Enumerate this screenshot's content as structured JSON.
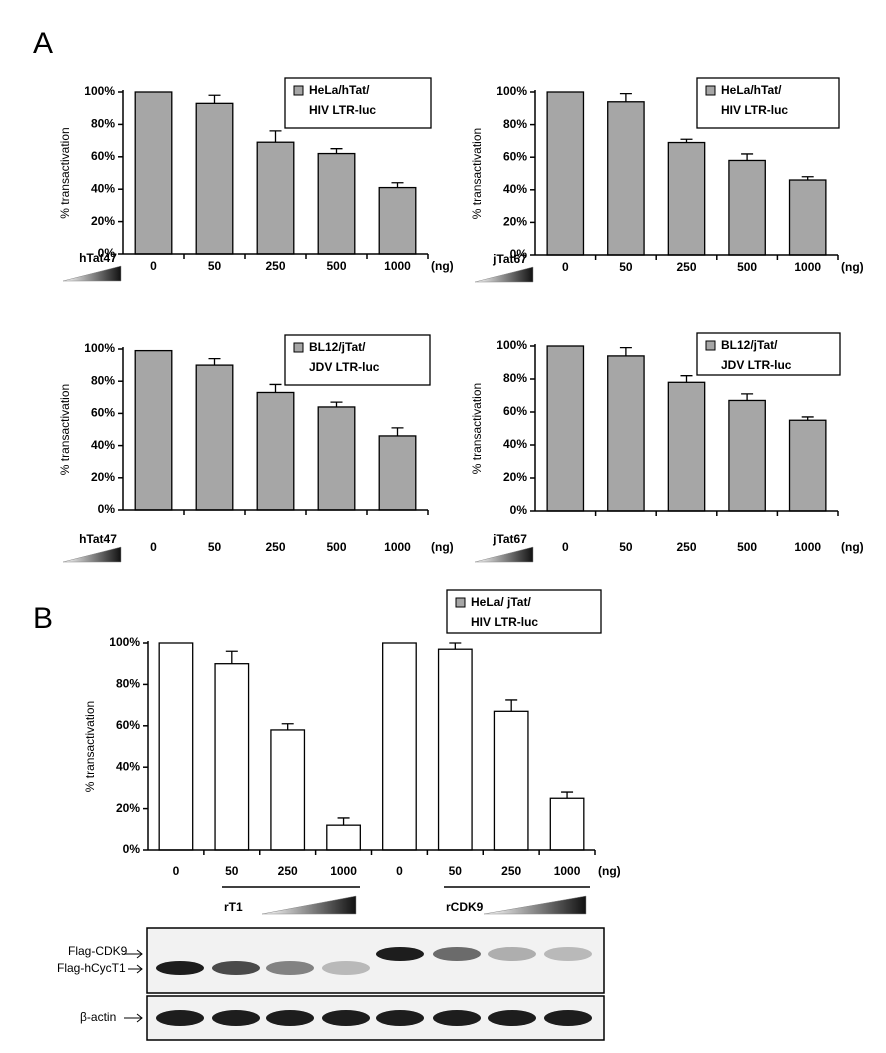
{
  "panel_labels": [
    "A",
    "B"
  ],
  "chart_data": [
    {
      "type": "bar",
      "ylabel": "% transactivation",
      "treatment": "hTat47",
      "x_unit": "(ng)",
      "categories": [
        "0",
        "50",
        "250",
        "500",
        "1000"
      ],
      "series": [
        {
          "name": "HeLa/hTat/\nHIV LTR-luc",
          "color": "#a6a6a6",
          "values": [
            100,
            93,
            69,
            62,
            41
          ],
          "errors": [
            null,
            5,
            7,
            3,
            3
          ]
        }
      ],
      "ylim": [
        0,
        100
      ],
      "yticks": [
        {
          "value": 0,
          "label": "0%"
        },
        {
          "value": 20,
          "label": "20%"
        },
        {
          "value": 40,
          "label": "40%"
        },
        {
          "value": 60,
          "label": "60%"
        },
        {
          "value": 80,
          "label": "80%"
        },
        {
          "value": 100,
          "label": "100%"
        }
      ]
    },
    {
      "type": "bar",
      "ylabel": "% transactivation",
      "treatment": "jTat67",
      "x_unit": "(ng)",
      "categories": [
        "0",
        "50",
        "250",
        "500",
        "1000"
      ],
      "series": [
        {
          "name": "HeLa/hTat/\nHIV LTR-luc",
          "color": "#a6a6a6",
          "values": [
            100,
            94,
            69,
            58,
            46
          ],
          "errors": [
            null,
            5,
            2,
            4,
            2
          ]
        }
      ],
      "ylim": [
        0,
        100
      ],
      "yticks": [
        {
          "value": 0,
          "label": "0%"
        },
        {
          "value": 20,
          "label": "20%"
        },
        {
          "value": 40,
          "label": "40%"
        },
        {
          "value": 60,
          "label": "60%"
        },
        {
          "value": 80,
          "label": "80%"
        },
        {
          "value": 100,
          "label": "100%"
        }
      ]
    },
    {
      "type": "bar",
      "ylabel": "% transactivation",
      "treatment": "hTat47",
      "x_unit": "(ng)",
      "categories": [
        "0",
        "50",
        "250",
        "500",
        "1000"
      ],
      "series": [
        {
          "name": "BL12/jTat/\nJDV LTR-luc",
          "color": "#a6a6a6",
          "values": [
            99,
            90,
            73,
            64,
            46
          ],
          "errors": [
            null,
            4,
            5,
            3,
            5
          ]
        }
      ],
      "ylim": [
        0,
        100
      ],
      "yticks": [
        {
          "value": 0,
          "label": "0%"
        },
        {
          "value": 20,
          "label": "20%"
        },
        {
          "value": 40,
          "label": "40%"
        },
        {
          "value": 60,
          "label": "60%"
        },
        {
          "value": 80,
          "label": "80%"
        },
        {
          "value": 100,
          "label": "100%"
        }
      ]
    },
    {
      "type": "bar",
      "ylabel": "% transactivation",
      "treatment": "jTat67",
      "x_unit": "(ng)",
      "categories": [
        "0",
        "50",
        "250",
        "500",
        "1000"
      ],
      "series": [
        {
          "name": "BL12/jTat/\nJDV LTR-luc",
          "color": "#a6a6a6",
          "values": [
            100,
            94,
            78,
            67,
            55
          ],
          "errors": [
            null,
            5,
            4,
            4,
            2
          ]
        }
      ],
      "ylim": [
        0,
        100
      ],
      "yticks": [
        {
          "value": 0,
          "label": "0%"
        },
        {
          "value": 20,
          "label": "20%"
        },
        {
          "value": 40,
          "label": "40%"
        },
        {
          "value": 60,
          "label": "60%"
        },
        {
          "value": 80,
          "label": "80%"
        },
        {
          "value": 100,
          "label": "100%"
        }
      ]
    },
    {
      "type": "bar",
      "ylabel": "% transactivation",
      "x_unit": "(ng)",
      "group_labels": [
        "rT1",
        "rCDK9"
      ],
      "categories": [
        "0",
        "50",
        "250",
        "1000",
        "0",
        "50",
        "250",
        "1000"
      ],
      "series": [
        {
          "name": "HeLa/ jTat/\nHIV LTR-luc",
          "color": "#ffffff",
          "legend_color": "#a6a6a6",
          "values": [
            100,
            90,
            58,
            12,
            100,
            97,
            67,
            25
          ],
          "errors": [
            null,
            6,
            3,
            3.5,
            null,
            3,
            5.5,
            3
          ]
        }
      ],
      "ylim": [
        0,
        100
      ],
      "yticks": [
        {
          "value": 0,
          "label": "0%"
        },
        {
          "value": 20,
          "label": "20%"
        },
        {
          "value": 40,
          "label": "40%"
        },
        {
          "value": 60,
          "label": "60%"
        },
        {
          "value": 80,
          "label": "80%"
        },
        {
          "value": 100,
          "label": "100%"
        }
      ]
    }
  ],
  "blot": {
    "labels": [
      "Flag-CDK9",
      "Flag-hCycT1",
      "β-actin"
    ]
  }
}
